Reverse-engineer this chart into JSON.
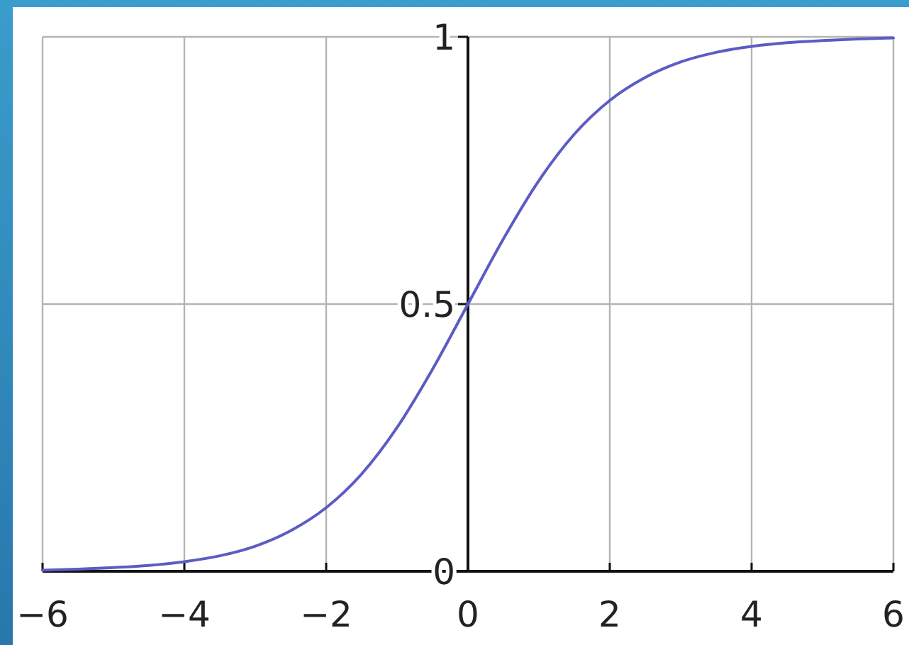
{
  "chart_data": {
    "type": "line",
    "x": [
      -6,
      -5.5,
      -5,
      -4.5,
      -4,
      -3.5,
      -3,
      -2.5,
      -2,
      -1.5,
      -1,
      -0.5,
      0,
      0.5,
      1,
      1.5,
      2,
      2.5,
      3,
      3.5,
      4,
      4.5,
      5,
      5.5,
      6
    ],
    "series": [
      {
        "color": "#5c5cc4",
        "values": [
          0.002,
          0.004,
          0.007,
          0.011,
          0.018,
          0.029,
          0.047,
          0.076,
          0.119,
          0.182,
          0.269,
          0.378,
          0.5,
          0.622,
          0.731,
          0.818,
          0.881,
          0.924,
          0.953,
          0.971,
          0.982,
          0.989,
          0.993,
          0.996,
          0.998
        ]
      }
    ],
    "xlim": [
      -6,
      6
    ],
    "ylim": [
      0,
      1
    ],
    "xticks": [
      {
        "value": -6,
        "label": "−6"
      },
      {
        "value": -4,
        "label": "−4"
      },
      {
        "value": -2,
        "label": "−2"
      },
      0,
      2,
      4,
      6
    ],
    "yticks": [
      0,
      0.5,
      1
    ],
    "grid": true
  }
}
